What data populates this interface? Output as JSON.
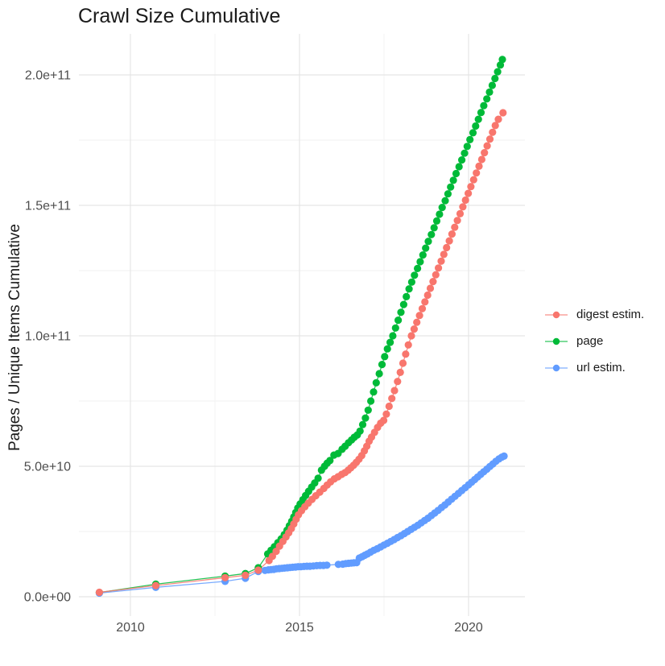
{
  "chart_data": {
    "type": "scatter",
    "title": "Crawl Size Cumulative",
    "xlabel": "",
    "ylabel": "Pages / Unique Items Cumulative",
    "legend_position": "right",
    "grid": true,
    "value_unit": "pages (values in billions, 1e9)",
    "xlim": [
      2008.5,
      2021.7
    ],
    "ylim": [
      0,
      220000000000.0
    ],
    "x_ticks": [
      {
        "v": 2010,
        "label": "2010"
      },
      {
        "v": 2015,
        "label": "2015"
      },
      {
        "v": 2020,
        "label": "2020"
      }
    ],
    "x_minor": [
      2012.5,
      2017.5
    ],
    "y_ticks": [
      {
        "v": 0,
        "label": "0.0e+00"
      },
      {
        "v": 50,
        "label": "5.0e+10"
      },
      {
        "v": 100,
        "label": "1.0e+11"
      },
      {
        "v": 150,
        "label": "1.5e+11"
      },
      {
        "v": 200,
        "label": "2.0e+11"
      }
    ],
    "y_minor": [
      25,
      75,
      125,
      175
    ],
    "colors": {
      "digest": "#F8766D",
      "page": "#00BA38",
      "url": "#619CFF"
    },
    "series": [
      {
        "name": "digest estim.",
        "color": "#F8766D",
        "points": [
          [
            2009.08,
            1.7
          ],
          [
            2010.75,
            4.3
          ],
          [
            2012.8,
            7.3
          ],
          [
            2013.4,
            8.2
          ],
          [
            2013.78,
            10.2
          ],
          [
            2014.1,
            13.9
          ],
          [
            2014.2,
            15.5
          ],
          [
            2014.31,
            17.4
          ],
          [
            2014.41,
            19.4
          ],
          [
            2014.51,
            21.2
          ],
          [
            2014.6,
            22.9
          ],
          [
            2014.68,
            24.5
          ],
          [
            2014.76,
            26.1
          ],
          [
            2014.83,
            27.9
          ],
          [
            2014.9,
            29.7
          ],
          [
            2014.97,
            31.4
          ],
          [
            2015.06,
            33.0
          ],
          [
            2015.16,
            34.5
          ],
          [
            2015.26,
            35.9
          ],
          [
            2015.37,
            37.3
          ],
          [
            2015.48,
            38.7
          ],
          [
            2015.6,
            40.1
          ],
          [
            2015.72,
            41.5
          ],
          [
            2015.82,
            42.8
          ],
          [
            2015.92,
            44.0
          ],
          [
            2016.03,
            45.2
          ],
          [
            2016.14,
            46.0
          ],
          [
            2016.25,
            46.9
          ],
          [
            2016.35,
            47.6
          ],
          [
            2016.44,
            48.5
          ],
          [
            2016.52,
            49.4
          ],
          [
            2016.6,
            50.4
          ],
          [
            2016.68,
            51.5
          ],
          [
            2016.76,
            52.7
          ],
          [
            2016.84,
            54.1
          ],
          [
            2016.92,
            55.9
          ],
          [
            2016.99,
            57.7
          ],
          [
            2017.06,
            59.6
          ],
          [
            2017.13,
            61.2
          ],
          [
            2017.22,
            63.0
          ],
          [
            2017.31,
            64.9
          ],
          [
            2017.4,
            66.5
          ],
          [
            2017.49,
            67.6
          ],
          [
            2017.57,
            70.0
          ],
          [
            2017.65,
            73.0
          ],
          [
            2017.73,
            76.0
          ],
          [
            2017.81,
            79.0
          ],
          [
            2017.9,
            82.5
          ],
          [
            2017.98,
            86.0
          ],
          [
            2018.06,
            89.5
          ],
          [
            2018.14,
            93.0
          ],
          [
            2018.22,
            96.5
          ],
          [
            2018.31,
            100.0
          ],
          [
            2018.39,
            102.6
          ],
          [
            2018.47,
            105.2
          ],
          [
            2018.55,
            107.8
          ],
          [
            2018.63,
            110.4
          ],
          [
            2018.71,
            113.0
          ],
          [
            2018.79,
            115.6
          ],
          [
            2018.87,
            118.2
          ],
          [
            2018.95,
            120.8
          ],
          [
            2019.03,
            123.4
          ],
          [
            2019.11,
            126.0
          ],
          [
            2019.19,
            128.6
          ],
          [
            2019.27,
            131.2
          ],
          [
            2019.35,
            133.8
          ],
          [
            2019.43,
            136.4
          ],
          [
            2019.51,
            139.0
          ],
          [
            2019.59,
            141.6
          ],
          [
            2019.67,
            144.2
          ],
          [
            2019.75,
            146.8
          ],
          [
            2019.83,
            149.4
          ],
          [
            2019.91,
            152.0
          ],
          [
            2019.99,
            154.6
          ],
          [
            2020.07,
            157.2
          ],
          [
            2020.15,
            159.8
          ],
          [
            2020.23,
            162.4
          ],
          [
            2020.31,
            165.0
          ],
          [
            2020.39,
            167.6
          ],
          [
            2020.47,
            170.2
          ],
          [
            2020.55,
            172.8
          ],
          [
            2020.63,
            175.4
          ],
          [
            2020.71,
            178.0
          ],
          [
            2020.79,
            180.6
          ],
          [
            2020.88,
            183.0
          ],
          [
            2021.02,
            185.5
          ]
        ]
      },
      {
        "name": "page",
        "color": "#00BA38",
        "points": [
          [
            2009.08,
            1.6
          ],
          [
            2010.75,
            4.8
          ],
          [
            2012.8,
            7.9
          ],
          [
            2013.4,
            8.9
          ],
          [
            2013.78,
            11.1
          ],
          [
            2014.06,
            16.4
          ],
          [
            2014.16,
            17.8
          ],
          [
            2014.26,
            19.2
          ],
          [
            2014.36,
            20.7
          ],
          [
            2014.46,
            22.2
          ],
          [
            2014.55,
            23.8
          ],
          [
            2014.63,
            25.5
          ],
          [
            2014.7,
            27.2
          ],
          [
            2014.77,
            28.9
          ],
          [
            2014.83,
            30.6
          ],
          [
            2014.89,
            32.3
          ],
          [
            2014.95,
            34.0
          ],
          [
            2015.02,
            35.6
          ],
          [
            2015.1,
            37.2
          ],
          [
            2015.18,
            38.8
          ],
          [
            2015.27,
            40.4
          ],
          [
            2015.36,
            42.0
          ],
          [
            2015.45,
            43.6
          ],
          [
            2015.55,
            45.4
          ],
          [
            2015.65,
            48.5
          ],
          [
            2015.74,
            50.0
          ],
          [
            2015.82,
            51.2
          ],
          [
            2015.9,
            52.2
          ],
          [
            2016.02,
            54.3
          ],
          [
            2016.14,
            54.9
          ],
          [
            2016.26,
            56.5
          ],
          [
            2016.35,
            57.7
          ],
          [
            2016.45,
            59.0
          ],
          [
            2016.54,
            60.1
          ],
          [
            2016.62,
            61.1
          ],
          [
            2016.71,
            62.0
          ],
          [
            2016.79,
            63.5
          ],
          [
            2016.87,
            66.0
          ],
          [
            2016.95,
            68.5
          ],
          [
            2017.03,
            71.5
          ],
          [
            2017.11,
            75.0
          ],
          [
            2017.19,
            78.5
          ],
          [
            2017.27,
            82.0
          ],
          [
            2017.36,
            85.5
          ],
          [
            2017.44,
            89.0
          ],
          [
            2017.52,
            92.0
          ],
          [
            2017.6,
            95.0
          ],
          [
            2017.68,
            97.5
          ],
          [
            2017.76,
            100.0
          ],
          [
            2017.84,
            103.0
          ],
          [
            2017.92,
            106.0
          ],
          [
            2018.0,
            109.0
          ],
          [
            2018.08,
            112.0
          ],
          [
            2018.16,
            115.0
          ],
          [
            2018.24,
            118.0
          ],
          [
            2018.32,
            120.6
          ],
          [
            2018.4,
            123.2
          ],
          [
            2018.49,
            125.8
          ],
          [
            2018.57,
            128.4
          ],
          [
            2018.65,
            131.0
          ],
          [
            2018.73,
            133.6
          ],
          [
            2018.81,
            136.2
          ],
          [
            2018.9,
            138.8
          ],
          [
            2018.98,
            141.4
          ],
          [
            2019.06,
            144.0
          ],
          [
            2019.14,
            146.6
          ],
          [
            2019.22,
            149.2
          ],
          [
            2019.31,
            151.8
          ],
          [
            2019.39,
            154.4
          ],
          [
            2019.47,
            157.0
          ],
          [
            2019.55,
            159.6
          ],
          [
            2019.63,
            162.2
          ],
          [
            2019.72,
            164.8
          ],
          [
            2019.8,
            167.4
          ],
          [
            2019.88,
            170.0
          ],
          [
            2019.96,
            172.6
          ],
          [
            2020.04,
            175.2
          ],
          [
            2020.13,
            177.8
          ],
          [
            2020.21,
            180.4
          ],
          [
            2020.29,
            183.0
          ],
          [
            2020.37,
            185.6
          ],
          [
            2020.45,
            188.2
          ],
          [
            2020.54,
            190.8
          ],
          [
            2020.62,
            193.4
          ],
          [
            2020.7,
            196.0
          ],
          [
            2020.78,
            198.6
          ],
          [
            2020.86,
            201.2
          ],
          [
            2020.94,
            203.8
          ],
          [
            2021.0,
            205.9
          ]
        ]
      },
      {
        "name": "url estim.",
        "color": "#619CFF",
        "points": [
          [
            2009.08,
            1.4
          ],
          [
            2010.75,
            3.6
          ],
          [
            2012.8,
            5.9
          ],
          [
            2013.4,
            7.1
          ],
          [
            2013.78,
            9.7
          ],
          [
            2013.98,
            10.1
          ],
          [
            2014.08,
            10.3
          ],
          [
            2014.16,
            10.4
          ],
          [
            2014.24,
            10.5
          ],
          [
            2014.32,
            10.7
          ],
          [
            2014.4,
            10.8
          ],
          [
            2014.48,
            10.9
          ],
          [
            2014.56,
            11.0
          ],
          [
            2014.64,
            11.1
          ],
          [
            2014.72,
            11.2
          ],
          [
            2014.8,
            11.3
          ],
          [
            2014.88,
            11.4
          ],
          [
            2014.96,
            11.5
          ],
          [
            2015.04,
            11.5
          ],
          [
            2015.13,
            11.6
          ],
          [
            2015.22,
            11.7
          ],
          [
            2015.31,
            11.7
          ],
          [
            2015.41,
            11.8
          ],
          [
            2015.51,
            11.9
          ],
          [
            2015.61,
            12.0
          ],
          [
            2015.71,
            12.0
          ],
          [
            2015.81,
            12.1
          ],
          [
            2016.15,
            12.4
          ],
          [
            2016.28,
            12.5
          ],
          [
            2016.37,
            12.7
          ],
          [
            2016.45,
            12.8
          ],
          [
            2016.53,
            12.9
          ],
          [
            2016.61,
            13.0
          ],
          [
            2016.69,
            13.1
          ],
          [
            2016.77,
            14.8
          ],
          [
            2016.85,
            15.3
          ],
          [
            2016.93,
            15.9
          ],
          [
            2017.01,
            16.4
          ],
          [
            2017.1,
            17.1
          ],
          [
            2017.2,
            17.8
          ],
          [
            2017.3,
            18.4
          ],
          [
            2017.4,
            19.1
          ],
          [
            2017.5,
            19.8
          ],
          [
            2017.6,
            20.5
          ],
          [
            2017.7,
            21.2
          ],
          [
            2017.8,
            21.9
          ],
          [
            2017.9,
            22.7
          ],
          [
            2018.0,
            23.4
          ],
          [
            2018.1,
            24.2
          ],
          [
            2018.2,
            25.0
          ],
          [
            2018.3,
            25.8
          ],
          [
            2018.4,
            26.6
          ],
          [
            2018.5,
            27.4
          ],
          [
            2018.6,
            28.3
          ],
          [
            2018.7,
            29.2
          ],
          [
            2018.8,
            30.1
          ],
          [
            2018.9,
            31.1
          ],
          [
            2019.0,
            32.1
          ],
          [
            2019.1,
            33.1
          ],
          [
            2019.2,
            34.2
          ],
          [
            2019.3,
            35.2
          ],
          [
            2019.4,
            36.3
          ],
          [
            2019.5,
            37.4
          ],
          [
            2019.6,
            38.5
          ],
          [
            2019.7,
            39.6
          ],
          [
            2019.8,
            40.7
          ],
          [
            2019.9,
            41.8
          ],
          [
            2020.0,
            42.9
          ],
          [
            2020.09,
            43.9
          ],
          [
            2020.18,
            44.9
          ],
          [
            2020.27,
            45.9
          ],
          [
            2020.36,
            46.9
          ],
          [
            2020.45,
            47.9
          ],
          [
            2020.54,
            48.9
          ],
          [
            2020.63,
            49.9
          ],
          [
            2020.72,
            50.9
          ],
          [
            2020.81,
            51.9
          ],
          [
            2020.9,
            52.8
          ],
          [
            2020.98,
            53.5
          ],
          [
            2021.05,
            53.9
          ]
        ]
      }
    ]
  }
}
